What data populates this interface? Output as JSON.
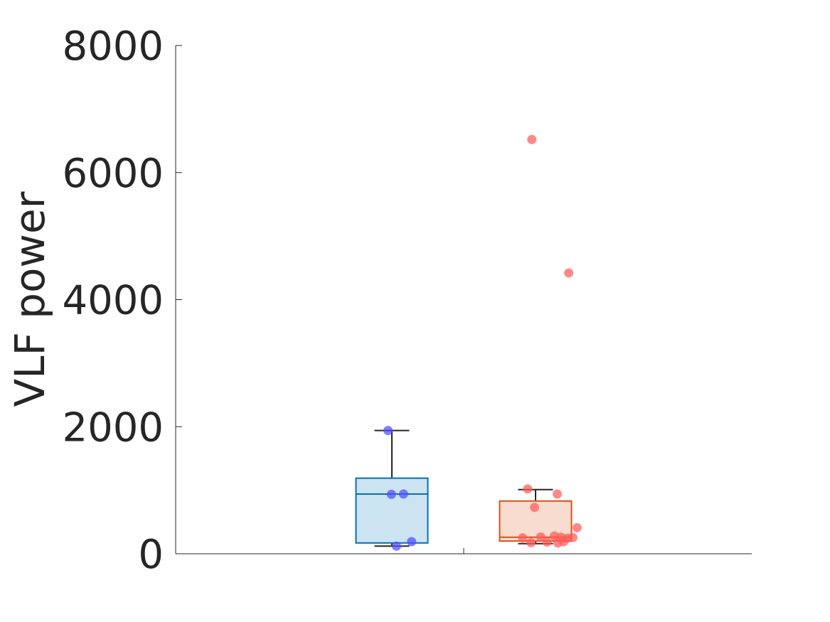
{
  "chart_data": {
    "type": "box",
    "title": "",
    "xlabel": "",
    "ylabel": "VLF power",
    "ylim": [
      0,
      8000
    ],
    "yticks": [
      "0",
      "2000",
      "4000",
      "6000",
      "8000"
    ],
    "ytick_values": [
      0,
      2000,
      4000,
      6000,
      8000
    ],
    "grid": false,
    "legend": "none",
    "series": [
      {
        "group_index": 1,
        "box_color": "#0072BD",
        "box_fill": "#CCE3F2",
        "point_color": "#4D4DFF",
        "whisker_low": 120,
        "q1": 170,
        "median": 940,
        "q3": 1190,
        "whisker_high": 1940,
        "points": [
          {
            "x": -0.027,
            "y": 1940
          },
          {
            "x": -0.003,
            "y": 935
          },
          {
            "x": 0.081,
            "y": 940
          },
          {
            "x": 0.032,
            "y": 120
          },
          {
            "x": 0.137,
            "y": 190
          }
        ]
      },
      {
        "group_index": 2,
        "box_color": "#D95319",
        "box_fill": "#F7DCCF",
        "point_color": "#FF5A5A",
        "whisker_low": 160,
        "q1": 200,
        "median": 260,
        "q3": 830,
        "whisker_high": 1010,
        "points": [
          {
            "x": -0.026,
            "y": 6520
          },
          {
            "x": 0.231,
            "y": 4420
          },
          {
            "x": -0.055,
            "y": 1020
          },
          {
            "x": 0.151,
            "y": 940
          },
          {
            "x": -0.007,
            "y": 730
          },
          {
            "x": 0.289,
            "y": 410
          },
          {
            "x": -0.09,
            "y": 250
          },
          {
            "x": 0.036,
            "y": 265
          },
          {
            "x": 0.131,
            "y": 280
          },
          {
            "x": 0.177,
            "y": 260
          },
          {
            "x": 0.222,
            "y": 245
          },
          {
            "x": 0.26,
            "y": 255
          },
          {
            "x": -0.032,
            "y": 175
          },
          {
            "x": 0.08,
            "y": 185
          },
          {
            "x": 0.156,
            "y": 170
          },
          {
            "x": 0.195,
            "y": 190
          }
        ]
      }
    ]
  }
}
